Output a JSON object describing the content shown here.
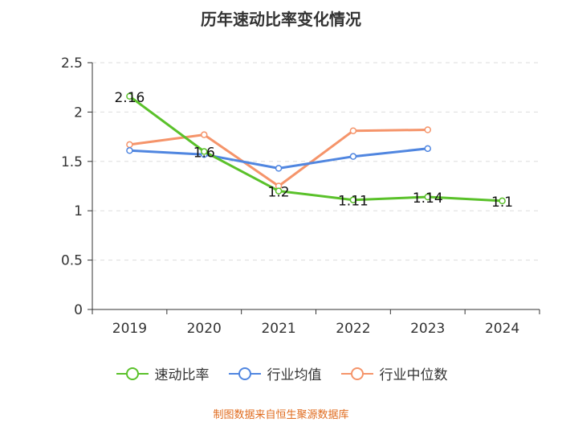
{
  "chart_data": {
    "type": "line",
    "title": "历年速动比率变化情况",
    "categories": [
      "2019",
      "2020",
      "2021",
      "2022",
      "2023",
      "2024"
    ],
    "ylim": [
      0,
      2.5
    ],
    "yticks": [
      "0",
      "0.5",
      "1",
      "1.5",
      "2",
      "2.5"
    ],
    "grid": "horizontal dashed",
    "legend_position": "bottom",
    "series": [
      {
        "name": "速动比率",
        "color": "#5ac12a",
        "values": [
          2.16,
          1.6,
          1.2,
          1.11,
          1.14,
          1.1
        ],
        "labels": [
          "2.16",
          "1.6",
          "1.2",
          "1.11",
          "1.14",
          "1.1"
        ]
      },
      {
        "name": "行业均值",
        "color": "#5086e0",
        "values": [
          1.61,
          1.57,
          1.43,
          1.55,
          1.63,
          null
        ]
      },
      {
        "name": "行业中位数",
        "color": "#f5946a",
        "values": [
          1.67,
          1.77,
          1.25,
          1.81,
          1.82,
          null
        ]
      }
    ]
  },
  "source_note": "制图数据来自恒生聚源数据库"
}
